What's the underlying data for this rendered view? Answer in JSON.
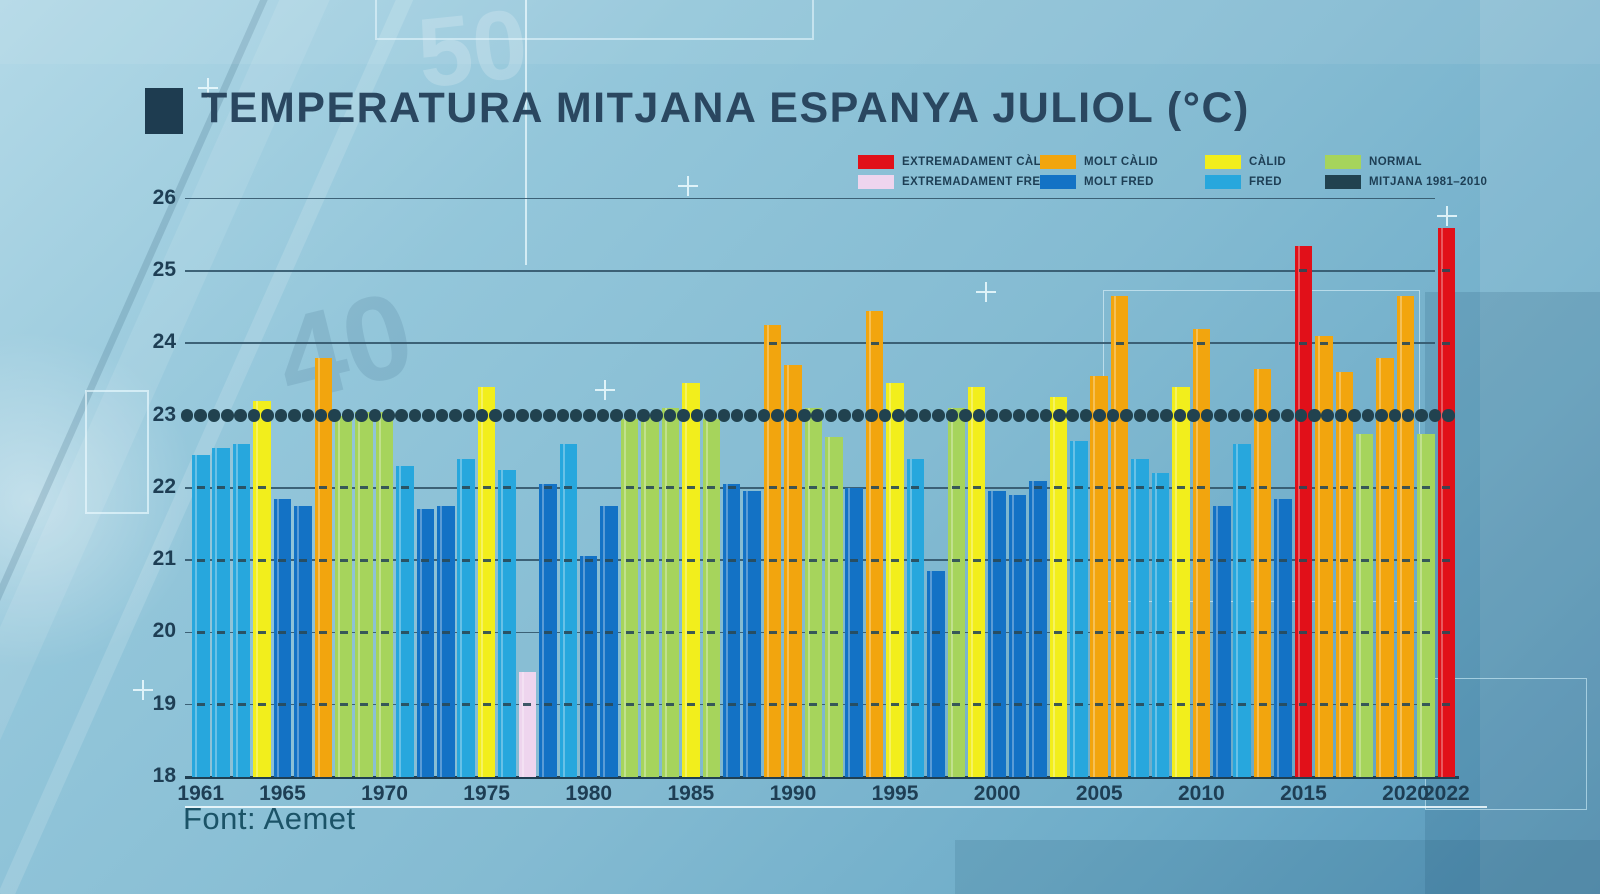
{
  "title": "TEMPERATURA MITJANA ESPANYA JULIOL (°C)",
  "source": "Font: Aemet",
  "legend": {
    "rows": [
      [
        {
          "label": "EXTREMADAMENT CÀLID",
          "category": "extremadament_calid"
        },
        {
          "label": "MOLT CÀLID",
          "category": "molt_calid"
        },
        {
          "label": "CÀLID",
          "category": "calid"
        },
        {
          "label": "NORMAL",
          "category": "normal"
        }
      ],
      [
        {
          "label": "EXTREMADAMENT FRED",
          "category": "extremadament_fred"
        },
        {
          "label": "MOLT FRED",
          "category": "molt_fred"
        },
        {
          "label": "FRED",
          "category": "fred"
        },
        {
          "label": "MITJANA 1981–2010",
          "category": "mitjana"
        }
      ]
    ]
  },
  "colors": {
    "extremadament_calid": "#e11019",
    "molt_calid": "#f2a50e",
    "calid": "#f2ee1c",
    "normal": "#a6d45c",
    "fred": "#27a7dd",
    "molt_fred": "#1372c5",
    "extremadament_fred": "#eed5ee",
    "mitjana": "#21424f"
  },
  "chart_data": {
    "type": "bar",
    "title": "TEMPERATURA MITJANA ESPANYA JULIOL (°C)",
    "ylabel": "",
    "xlabel": "",
    "ylim": [
      18,
      26
    ],
    "grid": true,
    "yticks": [
      18,
      19,
      20,
      21,
      22,
      23,
      24,
      25,
      26
    ],
    "xticks": [
      1961,
      1965,
      1970,
      1975,
      1980,
      1985,
      1990,
      1995,
      2000,
      2005,
      2010,
      2015,
      2020,
      2022
    ],
    "mean_line": {
      "label": "MITJANA 1981–2010",
      "value": 23,
      "style": "dotted"
    },
    "years": [
      1961,
      1962,
      1963,
      1964,
      1965,
      1966,
      1967,
      1968,
      1969,
      1970,
      1971,
      1972,
      1973,
      1974,
      1975,
      1976,
      1977,
      1978,
      1979,
      1980,
      1981,
      1982,
      1983,
      1984,
      1985,
      1986,
      1987,
      1988,
      1989,
      1990,
      1991,
      1992,
      1993,
      1994,
      1995,
      1996,
      1997,
      1998,
      1999,
      2000,
      2001,
      2002,
      2003,
      2004,
      2005,
      2006,
      2007,
      2008,
      2009,
      2010,
      2011,
      2012,
      2013,
      2014,
      2015,
      2016,
      2017,
      2018,
      2019,
      2020,
      2021,
      2022
    ],
    "values": [
      22.45,
      22.55,
      22.6,
      23.2,
      21.85,
      21.75,
      23.8,
      23.0,
      23.05,
      23.05,
      22.3,
      21.7,
      21.75,
      22.4,
      23.4,
      22.25,
      19.45,
      22.05,
      22.6,
      21.05,
      21.75,
      22.95,
      23.0,
      23.1,
      23.45,
      22.95,
      22.05,
      21.95,
      24.25,
      23.7,
      23.1,
      22.7,
      22.0,
      24.45,
      23.45,
      22.4,
      20.85,
      23.1,
      23.4,
      21.95,
      21.9,
      22.1,
      23.25,
      22.65,
      23.55,
      24.65,
      22.4,
      22.2,
      23.4,
      24.2,
      21.75,
      22.6,
      23.65,
      21.85,
      25.35,
      24.1,
      23.6,
      22.75,
      23.8,
      24.65,
      22.75,
      25.6
    ],
    "categories": [
      "fred",
      "fred",
      "fred",
      "calid",
      "molt_fred",
      "molt_fred",
      "molt_calid",
      "normal",
      "normal",
      "normal",
      "fred",
      "molt_fred",
      "molt_fred",
      "fred",
      "calid",
      "fred",
      "extremadament_fred",
      "molt_fred",
      "fred",
      "molt_fred",
      "molt_fred",
      "normal",
      "normal",
      "normal",
      "calid",
      "normal",
      "molt_fred",
      "molt_fred",
      "molt_calid",
      "molt_calid",
      "normal",
      "normal",
      "molt_fred",
      "molt_calid",
      "calid",
      "fred",
      "molt_fred",
      "normal",
      "calid",
      "molt_fred",
      "molt_fred",
      "molt_fred",
      "calid",
      "fred",
      "molt_calid",
      "molt_calid",
      "fred",
      "fred",
      "calid",
      "molt_calid",
      "molt_fred",
      "fred",
      "molt_calid",
      "molt_fred",
      "extremadament_calid",
      "molt_calid",
      "molt_calid",
      "normal",
      "molt_calid",
      "molt_calid",
      "normal",
      "extremadament_calid"
    ]
  }
}
